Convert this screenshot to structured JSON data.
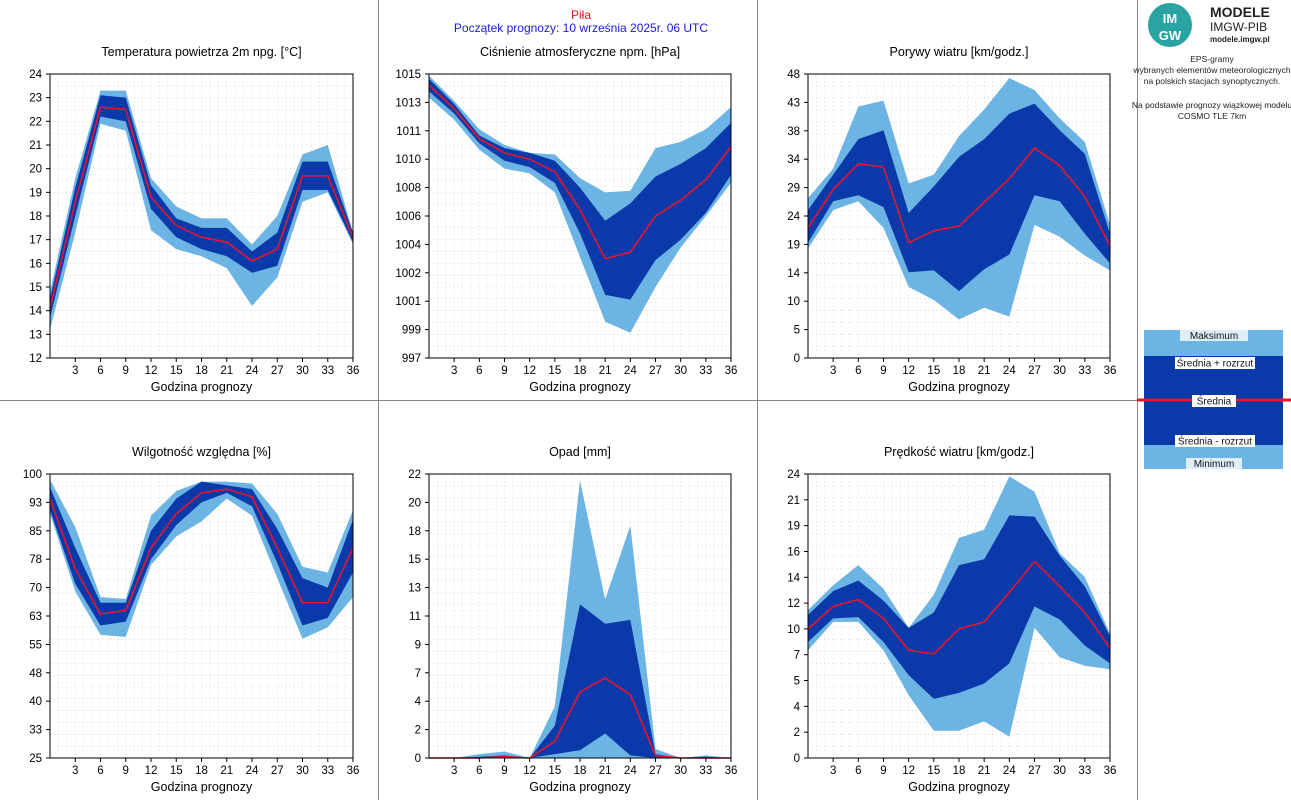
{
  "header": {
    "station": "Piła",
    "forecast_start": "Początek prognozy: 10 września 2025r. 06 UTC"
  },
  "logo": {
    "badge_top": "IM",
    "badge_bottom": "GW",
    "title": "MODELE",
    "subtitle": "IMGW-PIB",
    "url": "modele.imgw.pl"
  },
  "sidebar_text": [
    "EPS-gramy",
    "wybranych elementów meteorologicznych",
    "na polskich stacjach  synoptycznych.",
    "",
    "Na podstawie prognozy wiązkowej modelu",
    "COSMO TLE 7km"
  ],
  "legend": {
    "items": [
      "Maksimum",
      "Średnia + rozrzut",
      "Średnia",
      "Średnia - rozrzut",
      "Minimum"
    ]
  },
  "colors": {
    "range_band": "#6cb4e4",
    "spread_band": "#0a3aaa",
    "mean_line": "#e8142c",
    "grid": "#c8c8c8"
  },
  "chart_data": [
    {
      "type": "area",
      "title": "Temperatura powietrza 2m npg. [°C]",
      "xlabel": "Godzina prognozy",
      "ylim": [
        12,
        24
      ],
      "yticks": [
        "12",
        "13",
        "14",
        "15",
        "16",
        "17",
        "18",
        "19",
        "20",
        "21",
        "22",
        "23",
        "24"
      ],
      "x": [
        0,
        3,
        6,
        9,
        12,
        15,
        18,
        21,
        24,
        27,
        30,
        33,
        36
      ],
      "xticks": [
        "3",
        "6",
        "9",
        "12",
        "15",
        "18",
        "21",
        "24",
        "27",
        "30",
        "33",
        "36"
      ],
      "series": [
        {
          "role": "max",
          "values": [
            14.8,
            19.6,
            23.3,
            23.3,
            19.6,
            18.4,
            17.9,
            17.9,
            16.8,
            18.0,
            20.6,
            21.0,
            17.3
          ]
        },
        {
          "role": "mean_plus",
          "values": [
            14.5,
            19.2,
            23.1,
            23.0,
            19.3,
            17.9,
            17.5,
            17.5,
            16.5,
            17.3,
            20.3,
            20.3,
            17.3
          ]
        },
        {
          "role": "mean",
          "values": [
            14.1,
            18.6,
            22.6,
            22.5,
            18.8,
            17.6,
            17.1,
            16.9,
            16.1,
            16.6,
            19.7,
            19.7,
            17.1
          ]
        },
        {
          "role": "mean_minus",
          "values": [
            13.7,
            18.0,
            22.2,
            22.0,
            18.3,
            17.1,
            16.6,
            16.3,
            15.6,
            15.9,
            19.1,
            19.1,
            16.9
          ]
        },
        {
          "role": "min",
          "values": [
            13.2,
            17.3,
            21.9,
            21.6,
            17.4,
            16.6,
            16.3,
            15.8,
            14.2,
            15.4,
            18.6,
            19.0,
            16.8
          ]
        }
      ]
    },
    {
      "type": "area",
      "title": "Ciśnienie atmosferyczne npm. [hPa]",
      "xlabel": "Godzina prognozy",
      "ylim": [
        997,
        1015
      ],
      "yticks": [
        "997",
        "999",
        "1001",
        "1002",
        "1004",
        "1006",
        "1008",
        "1010",
        "1011",
        "1013",
        "1015"
      ],
      "x": [
        0,
        3,
        6,
        9,
        12,
        15,
        18,
        21,
        24,
        27,
        30,
        33,
        36
      ],
      "xticks": [
        "3",
        "6",
        "9",
        "12",
        "15",
        "18",
        "21",
        "24",
        "27",
        "30",
        "33",
        "36"
      ],
      "series": [
        {
          "role": "max",
          "values": [
            1014.9,
            1013.3,
            1011.5,
            1010.5,
            1010.0,
            1009.9,
            1008.4,
            1007.5,
            1007.6,
            1010.3,
            1010.7,
            1011.5,
            1012.9
          ]
        },
        {
          "role": "mean_plus",
          "values": [
            1014.7,
            1013.1,
            1011.1,
            1010.3,
            1010.0,
            1009.5,
            1007.8,
            1005.7,
            1006.8,
            1008.5,
            1009.3,
            1010.3,
            1011.9
          ]
        },
        {
          "role": "mean",
          "values": [
            1014.3,
            1012.8,
            1010.9,
            1010.0,
            1009.6,
            1008.8,
            1006.4,
            1003.3,
            1003.7,
            1006.0,
            1007.0,
            1008.3,
            1010.4
          ]
        },
        {
          "role": "mean_minus",
          "values": [
            1013.9,
            1012.5,
            1010.6,
            1009.5,
            1009.1,
            1008.1,
            1004.9,
            1001.0,
            1000.7,
            1003.2,
            1004.5,
            1006.2,
            1008.6
          ]
        },
        {
          "role": "min",
          "values": [
            1013.5,
            1012.1,
            1010.2,
            1009.0,
            1008.7,
            1007.5,
            1003.4,
            999.3,
            998.6,
            1001.5,
            1004.0,
            1006.0,
            1008.1
          ]
        }
      ]
    },
    {
      "type": "area",
      "title": "Porywy wiatru [km/godz.]",
      "xlabel": "Godzina prognozy",
      "ylim": [
        0,
        48
      ],
      "yticks": [
        "0",
        "5",
        "10",
        "14",
        "19",
        "24",
        "29",
        "34",
        "38",
        "43",
        "48"
      ],
      "x": [
        0,
        3,
        6,
        9,
        12,
        15,
        18,
        21,
        24,
        27,
        30,
        33,
        36
      ],
      "xticks": [
        "3",
        "6",
        "9",
        "12",
        "15",
        "18",
        "21",
        "24",
        "27",
        "30",
        "33",
        "36"
      ],
      "series": [
        {
          "role": "max",
          "values": [
            27.0,
            32.0,
            42.5,
            43.5,
            29.5,
            31.0,
            37.5,
            42.0,
            47.3,
            45.3,
            40.5,
            36.5,
            22.5
          ]
        },
        {
          "role": "mean_plus",
          "values": [
            25.0,
            31.0,
            37.0,
            38.5,
            24.5,
            29.0,
            34.0,
            37.0,
            41.3,
            43.0,
            38.5,
            34.5,
            21.0
          ]
        },
        {
          "role": "mean",
          "values": [
            22.0,
            28.5,
            32.8,
            32.3,
            19.5,
            21.5,
            22.3,
            26.3,
            30.3,
            35.5,
            32.5,
            27.3,
            19.0
          ]
        },
        {
          "role": "mean_minus",
          "values": [
            19.5,
            26.5,
            27.5,
            25.5,
            14.5,
            14.8,
            11.3,
            15.0,
            17.5,
            27.5,
            26.5,
            21.0,
            16.0
          ]
        },
        {
          "role": "min",
          "values": [
            18.5,
            25.0,
            26.5,
            22.0,
            12.0,
            9.8,
            6.5,
            8.5,
            7.0,
            22.5,
            20.5,
            17.3,
            14.8
          ]
        }
      ]
    },
    {
      "type": "area",
      "title": "Wilgotność względna [%]",
      "xlabel": "Godzina prognozy",
      "ylim": [
        25,
        100
      ],
      "yticks": [
        "25",
        "33",
        "40",
        "48",
        "55",
        "63",
        "70",
        "78",
        "85",
        "93",
        "100"
      ],
      "x": [
        0,
        3,
        6,
        9,
        12,
        15,
        18,
        21,
        24,
        27,
        30,
        33,
        36
      ],
      "xticks": [
        "3",
        "6",
        "9",
        "12",
        "15",
        "18",
        "21",
        "24",
        "27",
        "30",
        "33",
        "36"
      ],
      "series": [
        {
          "role": "max",
          "values": [
            98.5,
            86.0,
            67.5,
            67.0,
            89.0,
            95.5,
            98.0,
            98.0,
            97.5,
            89.5,
            75.5,
            74.0,
            90.5
          ]
        },
        {
          "role": "mean_plus",
          "values": [
            96.5,
            80.5,
            66.0,
            66.0,
            85.0,
            93.5,
            98.0,
            97.0,
            96.0,
            85.5,
            72.5,
            70.0,
            88.0
          ]
        },
        {
          "role": "mean",
          "values": [
            93.5,
            75.0,
            63.0,
            64.0,
            80.5,
            89.5,
            95.0,
            96.0,
            94.0,
            80.5,
            66.0,
            66.0,
            80.5
          ]
        },
        {
          "role": "mean_minus",
          "values": [
            90.5,
            71.0,
            60.0,
            61.0,
            77.5,
            86.5,
            92.5,
            95.0,
            91.5,
            76.5,
            60.0,
            62.0,
            74.0
          ]
        },
        {
          "role": "min",
          "values": [
            89.5,
            69.0,
            57.5,
            57.0,
            76.0,
            83.5,
            87.5,
            93.5,
            89.0,
            72.5,
            56.5,
            59.5,
            67.5
          ]
        }
      ]
    },
    {
      "type": "area",
      "title": "Opad [mm]",
      "xlabel": "Godzina prognozy",
      "ylim": [
        0,
        22
      ],
      "yticks": [
        "0",
        "2",
        "4",
        "7",
        "9",
        "11",
        "13",
        "15",
        "18",
        "20",
        "22"
      ],
      "x": [
        0,
        3,
        6,
        9,
        12,
        15,
        18,
        21,
        24,
        27,
        30,
        33,
        36
      ],
      "xticks": [
        "3",
        "6",
        "9",
        "12",
        "15",
        "18",
        "21",
        "24",
        "27",
        "30",
        "33",
        "36"
      ],
      "series": [
        {
          "role": "max",
          "values": [
            0,
            0,
            0.3,
            0.5,
            0,
            4.0,
            21.5,
            12.3,
            18.0,
            0.7,
            0,
            0.2,
            0
          ]
        },
        {
          "role": "mean_plus",
          "values": [
            0,
            0,
            0.1,
            0.2,
            0,
            2.5,
            11.9,
            10.4,
            10.7,
            0.3,
            0,
            0.1,
            0
          ]
        },
        {
          "role": "mean",
          "values": [
            0,
            0,
            0,
            0.1,
            0,
            1.3,
            5.1,
            6.2,
            4.9,
            0.2,
            0,
            0,
            0
          ]
        },
        {
          "role": "mean_minus",
          "values": [
            0,
            0,
            0,
            0,
            0,
            0.3,
            0.6,
            1.9,
            0.2,
            0,
            0,
            0,
            0
          ]
        },
        {
          "role": "min",
          "values": [
            0,
            0,
            0,
            0,
            0,
            0,
            0,
            0,
            0,
            0,
            0,
            0,
            0
          ]
        }
      ]
    },
    {
      "type": "area",
      "title": "Prędkość wiatru [km/godz.]",
      "xlabel": "Godzina prognozy",
      "ylim": [
        0,
        24
      ],
      "yticks": [
        "0",
        "2",
        "4",
        "5",
        "7",
        "10",
        "12",
        "14",
        "16",
        "19",
        "21",
        "24"
      ],
      "x": [
        0,
        3,
        6,
        9,
        12,
        15,
        18,
        21,
        24,
        27,
        30,
        33,
        36
      ],
      "xticks": [
        "3",
        "6",
        "9",
        "12",
        "15",
        "18",
        "21",
        "24",
        "27",
        "30",
        "33",
        "36"
      ],
      "series": [
        {
          "role": "max",
          "values": [
            12.5,
            14.6,
            16.3,
            14.3,
            11.0,
            13.8,
            18.6,
            19.3,
            23.8,
            22.5,
            17.3,
            15.3,
            10.5
          ]
        },
        {
          "role": "mean_plus",
          "values": [
            12.1,
            14.1,
            15.0,
            13.3,
            11.0,
            12.3,
            16.3,
            16.8,
            20.5,
            20.4,
            17.1,
            14.5,
            10.3
          ]
        },
        {
          "role": "mean",
          "values": [
            10.9,
            12.8,
            13.4,
            11.8,
            9.1,
            8.8,
            10.9,
            11.5,
            14.0,
            16.6,
            14.5,
            12.3,
            9.3
          ]
        },
        {
          "role": "mean_minus",
          "values": [
            9.8,
            11.8,
            11.9,
            9.8,
            7.0,
            5.0,
            5.5,
            6.3,
            8.0,
            12.8,
            11.7,
            9.5,
            8.0
          ]
        },
        {
          "role": "min",
          "values": [
            9.1,
            11.5,
            11.5,
            9.1,
            5.3,
            2.3,
            2.3,
            3.1,
            1.8,
            11.0,
            8.5,
            7.8,
            7.5
          ]
        }
      ]
    }
  ]
}
